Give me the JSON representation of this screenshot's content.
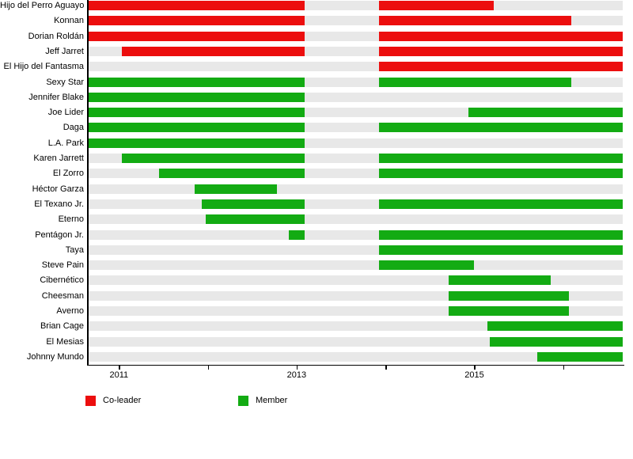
{
  "chart_data": {
    "type": "bar",
    "subtype": "horizontal-range-timeline-gantt",
    "title": "",
    "xlabel": "",
    "ylabel": "",
    "grid": false,
    "legend_position": "bottom",
    "x_axis": {
      "min": 2010.65,
      "max": 2016.67,
      "ticks": [
        {
          "year": 2011,
          "label": "2011"
        },
        {
          "year": 2012,
          "label": ""
        },
        {
          "year": 2013,
          "label": "2013"
        },
        {
          "year": 2014,
          "label": ""
        },
        {
          "year": 2015,
          "label": "2015"
        },
        {
          "year": 2016,
          "label": ""
        }
      ]
    },
    "legend": [
      {
        "key": "co-leader",
        "label": "Co-leader",
        "color": "#ec0e0e"
      },
      {
        "key": "member",
        "label": "Member",
        "color": "#13ab13"
      }
    ],
    "track_color": "#e8e8e8",
    "rows": [
      {
        "name": "Hijo del Perro Aguayo",
        "segments": [
          {
            "start": 2010.65,
            "end": 2013.09,
            "role": "co-leader"
          },
          {
            "start": 2013.93,
            "end": 2015.22,
            "role": "co-leader"
          }
        ]
      },
      {
        "name": "Konnan",
        "segments": [
          {
            "start": 2010.65,
            "end": 2013.09,
            "role": "co-leader"
          },
          {
            "start": 2013.93,
            "end": 2016.09,
            "role": "co-leader"
          }
        ]
      },
      {
        "name": "Dorian Roldán",
        "segments": [
          {
            "start": 2010.65,
            "end": 2013.09,
            "role": "co-leader"
          },
          {
            "start": 2013.93,
            "end": 2016.67,
            "role": "co-leader"
          }
        ]
      },
      {
        "name": "Jeff Jarret",
        "segments": [
          {
            "start": 2011.03,
            "end": 2013.09,
            "role": "co-leader"
          },
          {
            "start": 2013.93,
            "end": 2016.67,
            "role": "co-leader"
          }
        ]
      },
      {
        "name": "El Hijo del Fantasma",
        "segments": [
          {
            "start": 2013.93,
            "end": 2016.67,
            "role": "co-leader"
          }
        ]
      },
      {
        "name": "Sexy Star",
        "segments": [
          {
            "start": 2010.65,
            "end": 2013.09,
            "role": "member"
          },
          {
            "start": 2013.93,
            "end": 2016.09,
            "role": "member"
          }
        ]
      },
      {
        "name": "Jennifer Blake",
        "segments": [
          {
            "start": 2010.65,
            "end": 2013.09,
            "role": "member"
          }
        ]
      },
      {
        "name": "Joe Lider",
        "segments": [
          {
            "start": 2010.65,
            "end": 2013.09,
            "role": "member"
          },
          {
            "start": 2014.93,
            "end": 2016.67,
            "role": "member"
          }
        ]
      },
      {
        "name": "Daga",
        "segments": [
          {
            "start": 2010.65,
            "end": 2013.09,
            "role": "member"
          },
          {
            "start": 2013.93,
            "end": 2016.67,
            "role": "member"
          }
        ]
      },
      {
        "name": "L.A. Park",
        "segments": [
          {
            "start": 2010.65,
            "end": 2013.09,
            "role": "member"
          }
        ]
      },
      {
        "name": "Karen Jarrett",
        "segments": [
          {
            "start": 2011.03,
            "end": 2013.09,
            "role": "member"
          },
          {
            "start": 2013.93,
            "end": 2016.67,
            "role": "member"
          }
        ]
      },
      {
        "name": "El Zorro",
        "segments": [
          {
            "start": 2011.45,
            "end": 2013.09,
            "role": "member"
          },
          {
            "start": 2013.93,
            "end": 2016.67,
            "role": "member"
          }
        ]
      },
      {
        "name": "Héctor Garza",
        "segments": [
          {
            "start": 2011.85,
            "end": 2012.78,
            "role": "member"
          }
        ]
      },
      {
        "name": "El Texano Jr.",
        "segments": [
          {
            "start": 2011.93,
            "end": 2013.09,
            "role": "member"
          },
          {
            "start": 2013.93,
            "end": 2016.67,
            "role": "member"
          }
        ]
      },
      {
        "name": "Eterno",
        "segments": [
          {
            "start": 2011.98,
            "end": 2013.09,
            "role": "member"
          }
        ]
      },
      {
        "name": "Pentágon Jr.",
        "segments": [
          {
            "start": 2012.91,
            "end": 2013.09,
            "role": "member"
          },
          {
            "start": 2013.93,
            "end": 2016.67,
            "role": "member"
          }
        ]
      },
      {
        "name": "Taya",
        "segments": [
          {
            "start": 2013.93,
            "end": 2016.67,
            "role": "member"
          }
        ]
      },
      {
        "name": "Steve Pain",
        "segments": [
          {
            "start": 2013.93,
            "end": 2015.0,
            "role": "member"
          }
        ]
      },
      {
        "name": "Cibernético",
        "segments": [
          {
            "start": 2014.71,
            "end": 2015.86,
            "role": "member"
          }
        ]
      },
      {
        "name": "Cheesman",
        "segments": [
          {
            "start": 2014.71,
            "end": 2016.06,
            "role": "member"
          }
        ]
      },
      {
        "name": "Averno",
        "segments": [
          {
            "start": 2014.71,
            "end": 2016.06,
            "role": "member"
          }
        ]
      },
      {
        "name": "Brian Cage",
        "segments": [
          {
            "start": 2015.15,
            "end": 2016.67,
            "role": "member"
          }
        ]
      },
      {
        "name": "El Mesias",
        "segments": [
          {
            "start": 2015.17,
            "end": 2016.67,
            "role": "member"
          }
        ]
      },
      {
        "name": "Johnny Mundo",
        "segments": [
          {
            "start": 2015.71,
            "end": 2016.67,
            "role": "member"
          }
        ]
      }
    ]
  }
}
